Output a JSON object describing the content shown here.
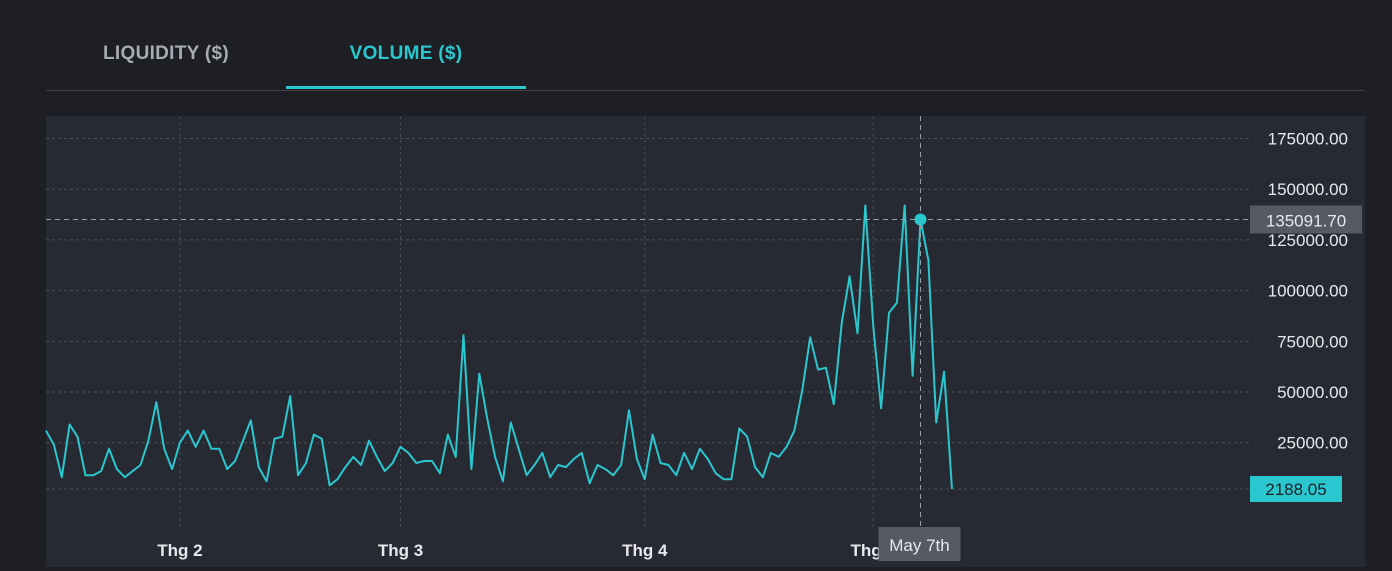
{
  "tabs": [
    {
      "label": "LIQUIDITY ($)",
      "active": false
    },
    {
      "label": "VOLUME ($)",
      "active": true
    }
  ],
  "colors": {
    "accent": "#2ac7cf",
    "plot_background": "#272a33",
    "page_background": "#1d1f24",
    "grid": "#4a4e57",
    "crosshair_label_background": "#565a63"
  },
  "chart_data": {
    "type": "line",
    "yticks": [
      25000,
      50000,
      75000,
      100000,
      125000,
      150000,
      175000
    ],
    "ytick_labels": [
      "25000.00",
      "50000.00",
      "75000.00",
      "100000.00",
      "125000.00",
      "150000.00",
      "175000.00"
    ],
    "xtick_labels": [
      "Thg 2",
      "Thg 3",
      "Thg 4",
      "Thg 5"
    ],
    "xtick_days": [
      17,
      45,
      76,
      105
    ],
    "grid": true,
    "x_unit": "day index from first point",
    "series": [
      {
        "color": "#2ac7cf",
        "values": [
          31000,
          24000,
          8000,
          34000,
          28000,
          9000,
          9000,
          11000,
          22000,
          12000,
          8000,
          11000,
          14000,
          26000,
          45000,
          22000,
          12000,
          25000,
          31000,
          23000,
          31000,
          22000,
          22000,
          12000,
          16000,
          26000,
          36000,
          13000,
          6000,
          27000,
          28000,
          48000,
          9000,
          15000,
          29000,
          27000,
          4000,
          7000,
          13000,
          18000,
          14000,
          26000,
          18000,
          11000,
          15000,
          23000,
          20000,
          15000,
          16000,
          16000,
          10000,
          29000,
          18000,
          78000,
          12000,
          59000,
          37000,
          18000,
          6000,
          35000,
          22000,
          9000,
          14000,
          20000,
          8000,
          14000,
          13000,
          17000,
          20000,
          5000,
          14000,
          12000,
          9000,
          14000,
          41000,
          17000,
          7000,
          29000,
          15000,
          14000,
          9000,
          20000,
          12000,
          22000,
          17000,
          10000,
          7000,
          7000,
          32000,
          28000,
          13000,
          8000,
          20000,
          18000,
          23000,
          31000,
          51000,
          77000,
          61000,
          62000,
          44000,
          84000,
          107000,
          79000,
          142000,
          83000,
          42000,
          89000,
          94000,
          142000,
          58000,
          135092,
          115000,
          35000,
          60000,
          2188
        ]
      }
    ],
    "crosshair": {
      "y_label": "135091.70",
      "x_label": "May 7th"
    },
    "last_value_label": "2188.05"
  }
}
